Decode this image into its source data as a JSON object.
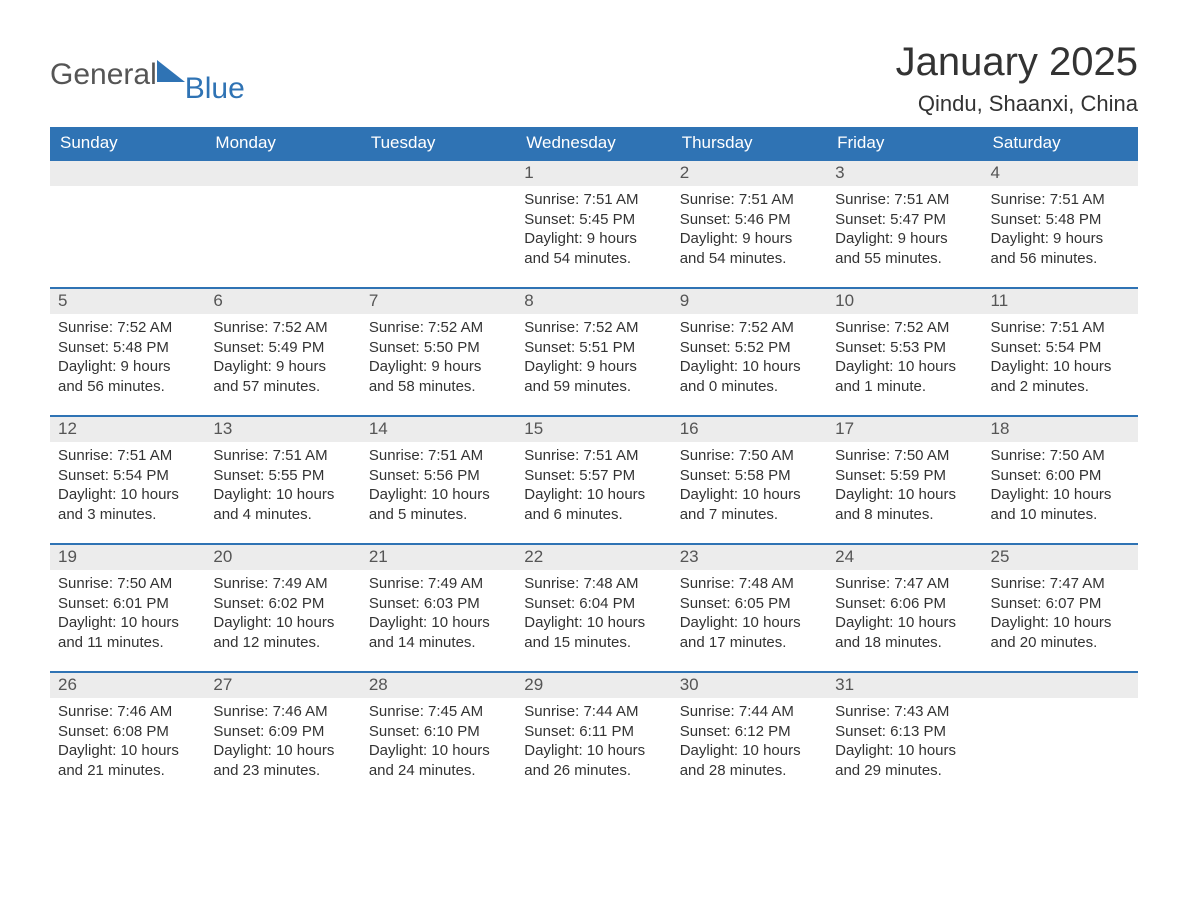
{
  "logo": {
    "text_a": "General",
    "text_b": "Blue"
  },
  "title": "January 2025",
  "location": "Qindu, Shaanxi, China",
  "colors": {
    "header_bg": "#2f73b4",
    "header_text": "#ffffff",
    "daynum_bg": "#ececec",
    "border": "#2f73b4",
    "body_text": "#333333",
    "logo_gray": "#555555",
    "logo_blue": "#2f73b4",
    "page_bg": "#ffffff"
  },
  "fonts": {
    "title_pt": 40,
    "location_pt": 22,
    "header_pt": 17,
    "daynum_pt": 17,
    "body_pt": 15
  },
  "weekdays": [
    "Sunday",
    "Monday",
    "Tuesday",
    "Wednesday",
    "Thursday",
    "Friday",
    "Saturday"
  ],
  "weeks": [
    [
      null,
      null,
      null,
      {
        "n": "1",
        "sr": "Sunrise: 7:51 AM",
        "ss": "Sunset: 5:45 PM",
        "d1": "Daylight: 9 hours",
        "d2": "and 54 minutes."
      },
      {
        "n": "2",
        "sr": "Sunrise: 7:51 AM",
        "ss": "Sunset: 5:46 PM",
        "d1": "Daylight: 9 hours",
        "d2": "and 54 minutes."
      },
      {
        "n": "3",
        "sr": "Sunrise: 7:51 AM",
        "ss": "Sunset: 5:47 PM",
        "d1": "Daylight: 9 hours",
        "d2": "and 55 minutes."
      },
      {
        "n": "4",
        "sr": "Sunrise: 7:51 AM",
        "ss": "Sunset: 5:48 PM",
        "d1": "Daylight: 9 hours",
        "d2": "and 56 minutes."
      }
    ],
    [
      {
        "n": "5",
        "sr": "Sunrise: 7:52 AM",
        "ss": "Sunset: 5:48 PM",
        "d1": "Daylight: 9 hours",
        "d2": "and 56 minutes."
      },
      {
        "n": "6",
        "sr": "Sunrise: 7:52 AM",
        "ss": "Sunset: 5:49 PM",
        "d1": "Daylight: 9 hours",
        "d2": "and 57 minutes."
      },
      {
        "n": "7",
        "sr": "Sunrise: 7:52 AM",
        "ss": "Sunset: 5:50 PM",
        "d1": "Daylight: 9 hours",
        "d2": "and 58 minutes."
      },
      {
        "n": "8",
        "sr": "Sunrise: 7:52 AM",
        "ss": "Sunset: 5:51 PM",
        "d1": "Daylight: 9 hours",
        "d2": "and 59 minutes."
      },
      {
        "n": "9",
        "sr": "Sunrise: 7:52 AM",
        "ss": "Sunset: 5:52 PM",
        "d1": "Daylight: 10 hours",
        "d2": "and 0 minutes."
      },
      {
        "n": "10",
        "sr": "Sunrise: 7:52 AM",
        "ss": "Sunset: 5:53 PM",
        "d1": "Daylight: 10 hours",
        "d2": "and 1 minute."
      },
      {
        "n": "11",
        "sr": "Sunrise: 7:51 AM",
        "ss": "Sunset: 5:54 PM",
        "d1": "Daylight: 10 hours",
        "d2": "and 2 minutes."
      }
    ],
    [
      {
        "n": "12",
        "sr": "Sunrise: 7:51 AM",
        "ss": "Sunset: 5:54 PM",
        "d1": "Daylight: 10 hours",
        "d2": "and 3 minutes."
      },
      {
        "n": "13",
        "sr": "Sunrise: 7:51 AM",
        "ss": "Sunset: 5:55 PM",
        "d1": "Daylight: 10 hours",
        "d2": "and 4 minutes."
      },
      {
        "n": "14",
        "sr": "Sunrise: 7:51 AM",
        "ss": "Sunset: 5:56 PM",
        "d1": "Daylight: 10 hours",
        "d2": "and 5 minutes."
      },
      {
        "n": "15",
        "sr": "Sunrise: 7:51 AM",
        "ss": "Sunset: 5:57 PM",
        "d1": "Daylight: 10 hours",
        "d2": "and 6 minutes."
      },
      {
        "n": "16",
        "sr": "Sunrise: 7:50 AM",
        "ss": "Sunset: 5:58 PM",
        "d1": "Daylight: 10 hours",
        "d2": "and 7 minutes."
      },
      {
        "n": "17",
        "sr": "Sunrise: 7:50 AM",
        "ss": "Sunset: 5:59 PM",
        "d1": "Daylight: 10 hours",
        "d2": "and 8 minutes."
      },
      {
        "n": "18",
        "sr": "Sunrise: 7:50 AM",
        "ss": "Sunset: 6:00 PM",
        "d1": "Daylight: 10 hours",
        "d2": "and 10 minutes."
      }
    ],
    [
      {
        "n": "19",
        "sr": "Sunrise: 7:50 AM",
        "ss": "Sunset: 6:01 PM",
        "d1": "Daylight: 10 hours",
        "d2": "and 11 minutes."
      },
      {
        "n": "20",
        "sr": "Sunrise: 7:49 AM",
        "ss": "Sunset: 6:02 PM",
        "d1": "Daylight: 10 hours",
        "d2": "and 12 minutes."
      },
      {
        "n": "21",
        "sr": "Sunrise: 7:49 AM",
        "ss": "Sunset: 6:03 PM",
        "d1": "Daylight: 10 hours",
        "d2": "and 14 minutes."
      },
      {
        "n": "22",
        "sr": "Sunrise: 7:48 AM",
        "ss": "Sunset: 6:04 PM",
        "d1": "Daylight: 10 hours",
        "d2": "and 15 minutes."
      },
      {
        "n": "23",
        "sr": "Sunrise: 7:48 AM",
        "ss": "Sunset: 6:05 PM",
        "d1": "Daylight: 10 hours",
        "d2": "and 17 minutes."
      },
      {
        "n": "24",
        "sr": "Sunrise: 7:47 AM",
        "ss": "Sunset: 6:06 PM",
        "d1": "Daylight: 10 hours",
        "d2": "and 18 minutes."
      },
      {
        "n": "25",
        "sr": "Sunrise: 7:47 AM",
        "ss": "Sunset: 6:07 PM",
        "d1": "Daylight: 10 hours",
        "d2": "and 20 minutes."
      }
    ],
    [
      {
        "n": "26",
        "sr": "Sunrise: 7:46 AM",
        "ss": "Sunset: 6:08 PM",
        "d1": "Daylight: 10 hours",
        "d2": "and 21 minutes."
      },
      {
        "n": "27",
        "sr": "Sunrise: 7:46 AM",
        "ss": "Sunset: 6:09 PM",
        "d1": "Daylight: 10 hours",
        "d2": "and 23 minutes."
      },
      {
        "n": "28",
        "sr": "Sunrise: 7:45 AM",
        "ss": "Sunset: 6:10 PM",
        "d1": "Daylight: 10 hours",
        "d2": "and 24 minutes."
      },
      {
        "n": "29",
        "sr": "Sunrise: 7:44 AM",
        "ss": "Sunset: 6:11 PM",
        "d1": "Daylight: 10 hours",
        "d2": "and 26 minutes."
      },
      {
        "n": "30",
        "sr": "Sunrise: 7:44 AM",
        "ss": "Sunset: 6:12 PM",
        "d1": "Daylight: 10 hours",
        "d2": "and 28 minutes."
      },
      {
        "n": "31",
        "sr": "Sunrise: 7:43 AM",
        "ss": "Sunset: 6:13 PM",
        "d1": "Daylight: 10 hours",
        "d2": "and 29 minutes."
      },
      null
    ]
  ]
}
